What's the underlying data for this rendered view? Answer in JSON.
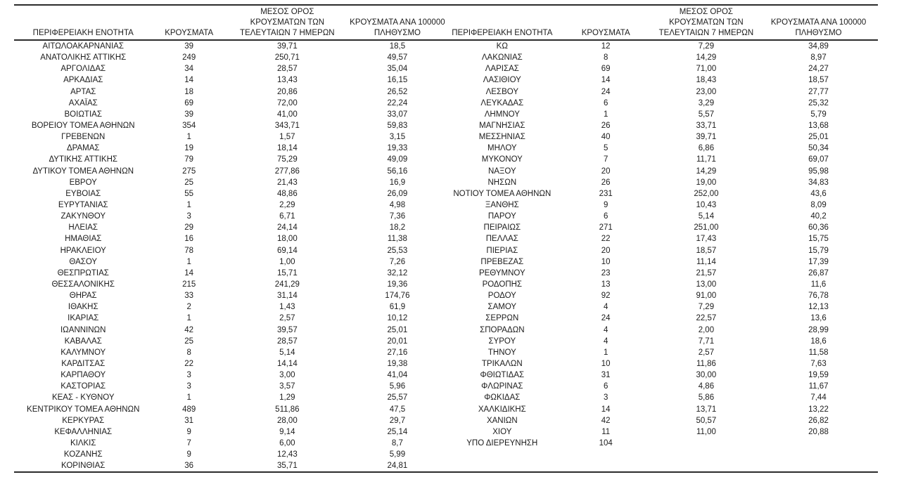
{
  "accent_colors": {
    "text": "#1c1c1c",
    "rule": "#2b2b2b",
    "background": "#ffffff"
  },
  "headers": {
    "region": "ΠΕΡΙΦΕΡΕΙΑΚΗ ΕΝΟΤΗΤΑ",
    "cases": "ΚΡΟΥΣΜΑΤΑ",
    "avg7_line1": "ΜΕΣΟΣ ΟΡΟΣ",
    "avg7_line2": "ΚΡΟΥΣΜΑΤΩΝ ΤΩΝ",
    "avg7_line3": "ΤΕΛΕΥΤΑΙΩΝ 7 ΗΜΕΡΩΝ",
    "per100k_line1": "ΚΡΟΥΣΜΑΤΑ ΑΝΑ 100000",
    "per100k_line2": "ΠΛΗΘΥΣΜΟ"
  },
  "left_rows": [
    [
      "ΑΙΤΩΛΟΑΚΑΡΝΑΝΙΑΣ",
      "39",
      "39,71",
      "18,5"
    ],
    [
      "ΑΝΑΤΟΛΙΚΗΣ ΑΤΤΙΚΗΣ",
      "249",
      "250,71",
      "49,57"
    ],
    [
      "ΑΡΓΟΛΙΔΑΣ",
      "34",
      "28,57",
      "35,04"
    ],
    [
      "ΑΡΚΑΔΙΑΣ",
      "14",
      "13,43",
      "16,15"
    ],
    [
      "ΑΡΤΑΣ",
      "18",
      "20,86",
      "26,52"
    ],
    [
      "ΑΧΑΪΑΣ",
      "69",
      "72,00",
      "22,24"
    ],
    [
      "ΒΟΙΩΤΙΑΣ",
      "39",
      "41,00",
      "33,07"
    ],
    [
      "ΒΟΡΕΙΟΥ ΤΟΜΕΑ ΑΘΗΝΩΝ",
      "354",
      "343,71",
      "59,83"
    ],
    [
      "ΓΡΕΒΕΝΩΝ",
      "1",
      "1,57",
      "3,15"
    ],
    [
      "ΔΡΑΜΑΣ",
      "19",
      "18,14",
      "19,33"
    ],
    [
      "ΔΥΤΙΚΗΣ ΑΤΤΙΚΗΣ",
      "79",
      "75,29",
      "49,09"
    ],
    [
      "ΔΥΤΙΚΟΥ ΤΟΜΕΑ ΑΘΗΝΩΝ",
      "275",
      "277,86",
      "56,16"
    ],
    [
      "ΕΒΡΟΥ",
      "25",
      "21,43",
      "16,9"
    ],
    [
      "ΕΥΒΟΙΑΣ",
      "55",
      "48,86",
      "26,09"
    ],
    [
      "ΕΥΡΥΤΑΝΙΑΣ",
      "1",
      "2,29",
      "4,98"
    ],
    [
      "ΖΑΚΥΝΘΟΥ",
      "3",
      "6,71",
      "7,36"
    ],
    [
      "ΗΛΕΙΑΣ",
      "29",
      "24,14",
      "18,2"
    ],
    [
      "ΗΜΑΘΙΑΣ",
      "16",
      "18,00",
      "11,38"
    ],
    [
      "ΗΡΑΚΛΕΙΟΥ",
      "78",
      "69,14",
      "25,53"
    ],
    [
      "ΘΑΣΟΥ",
      "1",
      "1,00",
      "7,26"
    ],
    [
      "ΘΕΣΠΡΩΤΙΑΣ",
      "14",
      "15,71",
      "32,12"
    ],
    [
      "ΘΕΣΣΑΛΟΝΙΚΗΣ",
      "215",
      "241,29",
      "19,36"
    ],
    [
      "ΘΗΡΑΣ",
      "33",
      "31,14",
      "174,76"
    ],
    [
      "ΙΘΑΚΗΣ",
      "2",
      "1,43",
      "61,9"
    ],
    [
      "ΙΚΑΡΙΑΣ",
      "1",
      "2,57",
      "10,12"
    ],
    [
      "ΙΩΑΝΝΙΝΩΝ",
      "42",
      "39,57",
      "25,01"
    ],
    [
      "ΚΑΒΑΛΑΣ",
      "25",
      "28,57",
      "20,01"
    ],
    [
      "ΚΑΛΥΜΝΟΥ",
      "8",
      "5,14",
      "27,16"
    ],
    [
      "ΚΑΡΔΙΤΣΑΣ",
      "22",
      "14,14",
      "19,38"
    ],
    [
      "ΚΑΡΠΑΘΟΥ",
      "3",
      "3,00",
      "41,04"
    ],
    [
      "ΚΑΣΤΟΡΙΑΣ",
      "3",
      "3,57",
      "5,96"
    ],
    [
      "ΚΕΑΣ - ΚΥΘΝΟΥ",
      "1",
      "1,29",
      "25,57"
    ],
    [
      "ΚΕΝΤΡΙΚΟΥ ΤΟΜΕΑ ΑΘΗΝΩΝ",
      "489",
      "511,86",
      "47,5"
    ],
    [
      "ΚΕΡΚΥΡΑΣ",
      "31",
      "28,00",
      "29,7"
    ],
    [
      "ΚΕΦΑΛΛΗΝΙΑΣ",
      "9",
      "9,14",
      "25,14"
    ],
    [
      "ΚΙΛΚΙΣ",
      "7",
      "6,00",
      "8,7"
    ],
    [
      "ΚΟΖΑΝΗΣ",
      "9",
      "12,43",
      "5,99"
    ],
    [
      "ΚΟΡΙΝΘΙΑΣ",
      "36",
      "35,71",
      "24,81"
    ]
  ],
  "right_rows": [
    [
      "ΚΩ",
      "12",
      "7,29",
      "34,89"
    ],
    [
      "ΛΑΚΩΝΙΑΣ",
      "8",
      "14,29",
      "8,97"
    ],
    [
      "ΛΑΡΙΣΑΣ",
      "69",
      "71,00",
      "24,27"
    ],
    [
      "ΛΑΣΙΘΙΟΥ",
      "14",
      "18,43",
      "18,57"
    ],
    [
      "ΛΕΣΒΟΥ",
      "24",
      "23,00",
      "27,77"
    ],
    [
      "ΛΕΥΚΑΔΑΣ",
      "6",
      "3,29",
      "25,32"
    ],
    [
      "ΛΗΜΝΟΥ",
      "1",
      "5,57",
      "5,79"
    ],
    [
      "ΜΑΓΝΗΣΙΑΣ",
      "26",
      "33,71",
      "13,68"
    ],
    [
      "ΜΕΣΣΗΝΙΑΣ",
      "40",
      "39,71",
      "25,01"
    ],
    [
      "ΜΗΛΟΥ",
      "5",
      "6,86",
      "50,34"
    ],
    [
      "ΜΥΚΟΝΟΥ",
      "7",
      "11,71",
      "69,07"
    ],
    [
      "ΝΑΞΟΥ",
      "20",
      "14,29",
      "95,98"
    ],
    [
      "ΝΗΣΩΝ",
      "26",
      "19,00",
      "34,83"
    ],
    [
      "ΝΟΤΙΟΥ ΤΟΜΕΑ ΑΘΗΝΩΝ",
      "231",
      "252,00",
      "43,6"
    ],
    [
      "ΞΑΝΘΗΣ",
      "9",
      "10,43",
      "8,09"
    ],
    [
      "ΠΑΡΟΥ",
      "6",
      "5,14",
      "40,2"
    ],
    [
      "ΠΕΙΡΑΙΩΣ",
      "271",
      "251,00",
      "60,36"
    ],
    [
      "ΠΕΛΛΑΣ",
      "22",
      "17,43",
      "15,75"
    ],
    [
      "ΠΙΕΡΙΑΣ",
      "20",
      "18,57",
      "15,79"
    ],
    [
      "ΠΡΕΒΕΖΑΣ",
      "10",
      "11,14",
      "17,39"
    ],
    [
      "ΡΕΘΥΜΝΟΥ",
      "23",
      "21,57",
      "26,87"
    ],
    [
      "ΡΟΔΟΠΗΣ",
      "13",
      "13,00",
      "11,6"
    ],
    [
      "ΡΟΔΟΥ",
      "92",
      "91,00",
      "76,78"
    ],
    [
      "ΣΑΜΟΥ",
      "4",
      "7,29",
      "12,13"
    ],
    [
      "ΣΕΡΡΩΝ",
      "24",
      "22,57",
      "13,6"
    ],
    [
      "ΣΠΟΡΑΔΩΝ",
      "4",
      "2,00",
      "28,99"
    ],
    [
      "ΣΥΡΟΥ",
      "4",
      "7,71",
      "18,6"
    ],
    [
      "ΤΗΝΟΥ",
      "1",
      "2,57",
      "11,58"
    ],
    [
      "ΤΡΙΚΑΛΩΝ",
      "10",
      "11,86",
      "7,63"
    ],
    [
      "ΦΘΙΩΤΙΔΑΣ",
      "31",
      "30,00",
      "19,59"
    ],
    [
      "ΦΛΩΡΙΝΑΣ",
      "6",
      "4,86",
      "11,67"
    ],
    [
      "ΦΩΚΙΔΑΣ",
      "3",
      "5,86",
      "7,44"
    ],
    [
      "ΧΑΛΚΙΔΙΚΗΣ",
      "14",
      "13,71",
      "13,22"
    ],
    [
      "ΧΑΝΙΩΝ",
      "42",
      "50,57",
      "26,82"
    ],
    [
      "ΧΙΟΥ",
      "11",
      "11,00",
      "20,88"
    ],
    [
      "ΥΠΟ ΔΙΕΡΕΥΝΗΣΗ",
      "104",
      "",
      ""
    ]
  ]
}
